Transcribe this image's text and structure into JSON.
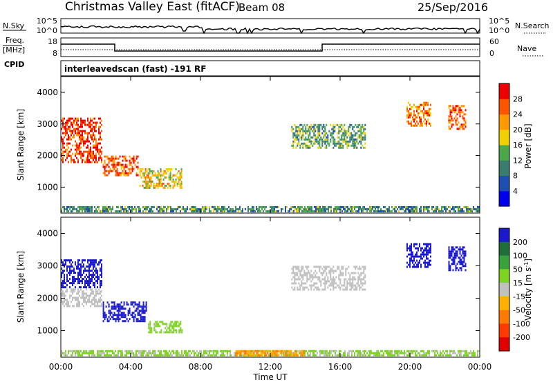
{
  "header": {
    "station": "Christmas Valley East (fitACF)",
    "beam": "Beam 08",
    "date": "25/Sep/2016"
  },
  "noise_panel": {
    "left_label": "N.Sky",
    "left_ticks": [
      "10^5",
      "10^0"
    ],
    "right_label": "N.Search",
    "right_ticks": [
      "10^5",
      "10^0"
    ]
  },
  "freq_panel": {
    "left_label_1": "Freq.",
    "left_label_2": "[MHz]",
    "left_ticks": [
      "18",
      "8"
    ],
    "right_label": "Nave",
    "right_ticks": [
      "60",
      "0"
    ]
  },
  "cpid_panel": {
    "label": "CPID",
    "value": "interleavedscan (fast) -191 RF"
  },
  "time_axis": {
    "ticks": [
      "00:00",
      "04:00",
      "08:00",
      "12:00",
      "16:00",
      "20:00",
      "00:00"
    ],
    "title": "Time UT"
  },
  "range_axis": {
    "title": "Slant Range [km]",
    "ticks": [
      "1000",
      "2000",
      "3000",
      "4000"
    ]
  },
  "power_colorbar": {
    "title": "Power [dB]",
    "ticks": [
      "4",
      "8",
      "12",
      "16",
      "20",
      "24",
      "28"
    ],
    "colors": [
      "#0000ee",
      "#1e4fb0",
      "#3a7d6e",
      "#4aa84a",
      "#f2d000",
      "#ff9a00",
      "#ff5500",
      "#ee0000"
    ]
  },
  "velocity_colorbar": {
    "title": "Velocity [m s",
    "title_sup": "-1",
    "title_end": "]",
    "ticks": [
      "200",
      "100",
      "50",
      "15",
      "-15",
      "-50",
      "-100",
      "-200"
    ],
    "colors": [
      "#1a1acc",
      "#1f6f3a",
      "#3aa23a",
      "#7ed321",
      "#c0c0c0",
      "#ffb000",
      "#ff7a00",
      "#ff3a00",
      "#e00000"
    ]
  },
  "chart_data": [
    {
      "type": "heatmap",
      "title": "Power [dB]",
      "xlabel": "Time UT",
      "ylabel": "Slant Range [km]",
      "xlim": [
        0,
        24
      ],
      "ylim": [
        180,
        4500
      ],
      "clim": [
        0,
        30
      ],
      "regions": [
        {
          "t": [
            0.0,
            2.4
          ],
          "range": [
            1700,
            3200
          ],
          "power": 26
        },
        {
          "t": [
            2.4,
            4.5
          ],
          "range": [
            1300,
            2000
          ],
          "power": 24
        },
        {
          "t": [
            4.5,
            7.0
          ],
          "range": [
            900,
            1600
          ],
          "power": 18
        },
        {
          "t": [
            0.0,
            24.0
          ],
          "range": [
            180,
            400
          ],
          "power": 10
        },
        {
          "t": [
            13.2,
            17.5
          ],
          "range": [
            2200,
            3000
          ],
          "power": 12
        },
        {
          "t": [
            19.8,
            21.3
          ],
          "range": [
            2900,
            3700
          ],
          "power": 22
        },
        {
          "t": [
            22.2,
            23.3
          ],
          "range": [
            2800,
            3600
          ],
          "power": 24
        }
      ]
    },
    {
      "type": "heatmap",
      "title": "Velocity [m s-1]",
      "xlabel": "Time UT",
      "ylabel": "Slant Range [km]",
      "xlim": [
        0,
        24
      ],
      "ylim": [
        180,
        4500
      ],
      "clim": [
        -200,
        200
      ],
      "regions": [
        {
          "t": [
            0.0,
            2.4
          ],
          "range": [
            2300,
            3200
          ],
          "velocity": 220
        },
        {
          "t": [
            0.0,
            2.4
          ],
          "range": [
            1700,
            2300
          ],
          "velocity": 0
        },
        {
          "t": [
            2.4,
            5.0
          ],
          "range": [
            1200,
            1900
          ],
          "velocity": 220
        },
        {
          "t": [
            5.0,
            7.0
          ],
          "range": [
            900,
            1300
          ],
          "velocity": 40
        },
        {
          "t": [
            0.0,
            24.0
          ],
          "range": [
            180,
            400
          ],
          "velocity": 30
        },
        {
          "t": [
            10.0,
            14.0
          ],
          "range": [
            180,
            400
          ],
          "velocity": -60
        },
        {
          "t": [
            13.2,
            17.5
          ],
          "range": [
            2200,
            3000
          ],
          "velocity": 0
        },
        {
          "t": [
            19.8,
            21.3
          ],
          "range": [
            2900,
            3700
          ],
          "velocity": 220
        },
        {
          "t": [
            22.2,
            23.3
          ],
          "range": [
            2800,
            3600
          ],
          "velocity": 220
        }
      ]
    }
  ]
}
